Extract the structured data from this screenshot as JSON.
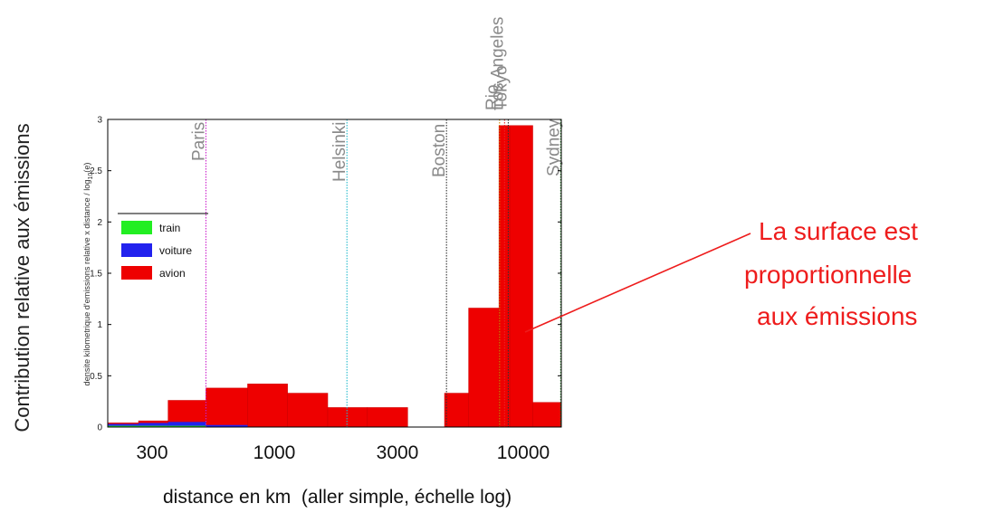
{
  "outer": {
    "ylabel": "Contribution relative aux émissions",
    "xlabel": "distance en km  (aller simple, échelle log)",
    "xticks": [
      "300",
      "1000",
      "3000",
      "10000"
    ]
  },
  "annotation": {
    "lines": [
      "La surface est",
      "proportionnelle",
      "aux émissions"
    ],
    "color": "#ee1c1c"
  },
  "chart_data": {
    "type": "bar",
    "x_scale": "log",
    "xlim": [
      200,
      16500
    ],
    "ylim": [
      0,
      3
    ],
    "yticks": [
      0,
      0.5,
      1,
      1.5,
      2,
      2.5,
      3
    ],
    "ylabel_main": "densite kilometrique d'emissions relative x distance / log",
    "ylabel_sub": "10",
    "ylabel_end": "(e)",
    "legend_position": "top-left",
    "series": [
      {
        "name": "train",
        "color": "#22ee22",
        "bins": [
          {
            "x0": 200,
            "x1": 270,
            "value": 0.012
          },
          {
            "x0": 270,
            "x1": 360,
            "value": 0.012
          },
          {
            "x0": 360,
            "x1": 520,
            "value": 0.012
          }
        ]
      },
      {
        "name": "voiture",
        "color": "#2222ee",
        "bins": [
          {
            "x0": 200,
            "x1": 270,
            "value": 0.03
          },
          {
            "x0": 270,
            "x1": 360,
            "value": 0.04
          },
          {
            "x0": 360,
            "x1": 520,
            "value": 0.05
          },
          {
            "x0": 520,
            "x1": 780,
            "value": 0.02
          }
        ]
      },
      {
        "name": "avion",
        "color": "#ee0000",
        "bins": [
          {
            "x0": 200,
            "x1": 270,
            "value": 0.04
          },
          {
            "x0": 270,
            "x1": 360,
            "value": 0.06
          },
          {
            "x0": 360,
            "x1": 520,
            "value": 0.26
          },
          {
            "x0": 520,
            "x1": 780,
            "value": 0.38
          },
          {
            "x0": 780,
            "x1": 1150,
            "value": 0.42
          },
          {
            "x0": 1150,
            "x1": 1700,
            "value": 0.33
          },
          {
            "x0": 1700,
            "x1": 2500,
            "value": 0.19
          },
          {
            "x0": 2500,
            "x1": 3700,
            "value": 0.19
          },
          {
            "x0": 3700,
            "x1": 5300,
            "value": 0.0
          },
          {
            "x0": 5300,
            "x1": 6700,
            "value": 0.33
          },
          {
            "x0": 6700,
            "x1": 9000,
            "value": 1.16
          },
          {
            "x0": 9000,
            "x1": 10000,
            "value": 2.94
          },
          {
            "x0": 10000,
            "x1": 12500,
            "value": 2.94
          },
          {
            "x0": 12500,
            "x1": 16500,
            "value": 0.24
          }
        ]
      }
    ],
    "cities": [
      {
        "name": "Paris",
        "x": 520,
        "color": "#cc22cc"
      },
      {
        "name": "Helsinki",
        "x": 2050,
        "color": "#22bbcc"
      },
      {
        "name": "Boston",
        "x": 5400,
        "color": "#333333"
      },
      {
        "name": "Rio",
        "x": 9050,
        "color": "#cc8800"
      },
      {
        "name": "Los Angeles",
        "x": 9500,
        "color": "#ee2222"
      },
      {
        "name": "Tokyo",
        "x": 9850,
        "color": "#333333"
      },
      {
        "name": "Sydney",
        "x": 16400,
        "color": "#228822"
      }
    ]
  }
}
